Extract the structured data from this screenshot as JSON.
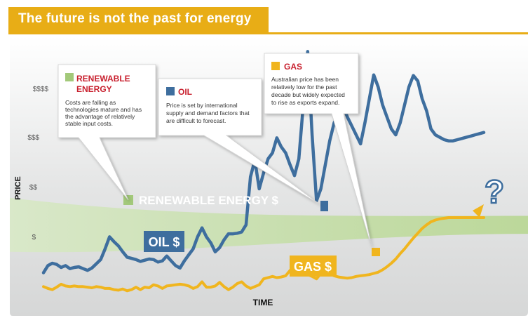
{
  "title": "The future is not the past for energy",
  "chart_data": {
    "type": "line",
    "title": "The future is not the past for energy",
    "xlabel": "TIME",
    "ylabel": "PRICE",
    "y_ticks": [
      "$",
      "$$",
      "$$$",
      "$$$$"
    ],
    "x": [
      0,
      1,
      2,
      3,
      4,
      5,
      6,
      7,
      8,
      9,
      10,
      11,
      12,
      13,
      14,
      15,
      16,
      17,
      18,
      19,
      20,
      21,
      22,
      23,
      24,
      25,
      26,
      27,
      28,
      29,
      30,
      31,
      32,
      33,
      34,
      35,
      36,
      37,
      38,
      39,
      40,
      41,
      42,
      43,
      44,
      45,
      46,
      47,
      48,
      49,
      50,
      51,
      52,
      53,
      54,
      55,
      56,
      57,
      58,
      59,
      60,
      61,
      62,
      63,
      64,
      65,
      66,
      67,
      68,
      69,
      70,
      71,
      72,
      73,
      74,
      75,
      76,
      77,
      78,
      79,
      80,
      81,
      82,
      83,
      84,
      85,
      86,
      87,
      88,
      89,
      90,
      91,
      92,
      93,
      94,
      95,
      96,
      97,
      98,
      99,
      100
    ],
    "ylim": [
      0.45,
      4.5
    ],
    "series": [
      {
        "name": "OIL $",
        "color": "#3e6e9e",
        "values": [
          0.7,
          0.82,
          0.86,
          0.84,
          0.79,
          0.82,
          0.77,
          0.79,
          0.8,
          0.77,
          0.74,
          0.78,
          0.85,
          0.92,
          1.1,
          1.3,
          1.22,
          1.15,
          1.05,
          0.96,
          0.94,
          0.92,
          0.89,
          0.91,
          0.93,
          0.92,
          0.88,
          0.9,
          0.98,
          0.9,
          0.82,
          0.78,
          0.9,
          1.0,
          1.1,
          1.3,
          1.45,
          1.3,
          1.2,
          1.05,
          1.12,
          1.25,
          1.35,
          1.35,
          1.36,
          1.38,
          1.5,
          2.3,
          2.58,
          2.1,
          2.37,
          2.6,
          2.7,
          2.95,
          2.8,
          2.7,
          2.5,
          2.32,
          2.6,
          3.5,
          4.39,
          3.0,
          1.9,
          2.1,
          2.5,
          2.9,
          3.2,
          3.4,
          3.5,
          3.3,
          3.15,
          3.0,
          2.85,
          3.2,
          3.6,
          4.0,
          3.8,
          3.5,
          3.3,
          3.1,
          3.0,
          3.2,
          3.5,
          3.8,
          3.99,
          3.9,
          3.6,
          3.4,
          3.1,
          3.0,
          2.96,
          2.92,
          2.9,
          2.9,
          2.92,
          2.94,
          2.96,
          2.98,
          3.0,
          3.02,
          3.04
        ]
      },
      {
        "name": "GAS $",
        "color": "#f0b51e",
        "values": [
          0.47,
          0.44,
          0.42,
          0.46,
          0.51,
          0.48,
          0.47,
          0.48,
          0.47,
          0.47,
          0.46,
          0.45,
          0.47,
          0.46,
          0.44,
          0.44,
          0.42,
          0.41,
          0.43,
          0.4,
          0.42,
          0.46,
          0.42,
          0.46,
          0.45,
          0.5,
          0.48,
          0.44,
          0.48,
          0.49,
          0.5,
          0.51,
          0.5,
          0.48,
          0.44,
          0.47,
          0.55,
          0.46,
          0.46,
          0.48,
          0.54,
          0.47,
          0.42,
          0.46,
          0.52,
          0.55,
          0.48,
          0.44,
          0.47,
          0.5,
          0.6,
          0.62,
          0.64,
          0.62,
          0.63,
          0.65,
          0.74,
          0.79,
          0.76,
          0.72,
          0.67,
          0.64,
          0.6,
          0.69,
          0.72,
          0.68,
          0.65,
          0.63,
          0.62,
          0.61,
          0.62,
          0.64,
          0.65,
          0.66,
          0.67,
          0.69,
          0.71,
          0.75,
          0.8,
          0.86,
          0.93,
          1.02,
          1.1,
          1.19,
          1.28,
          1.36,
          1.44,
          1.5,
          1.55,
          1.58,
          1.6,
          1.61,
          1.62,
          1.62,
          1.62,
          1.62,
          1.62,
          1.62,
          1.62,
          1.62,
          1.62
        ]
      }
    ],
    "band": {
      "name": "RENEWABLE ENERGY $",
      "color": "#bcd89a",
      "upper_start": 1.95,
      "upper_end": 1.65,
      "lower_start": 1.05,
      "lower_end": 1.35
    }
  },
  "series_labels": {
    "oil": "OIL $",
    "gas": "GAS $",
    "renewable": "RENEWABLE ENERGY $",
    "question": "?"
  },
  "callouts": {
    "renewable": {
      "title_line1": "RENEWABLE",
      "title_line2": "ENERGY",
      "body": [
        "Costs are falling as",
        "technologies mature and has",
        "the advantage of relatively",
        "stable input costs."
      ],
      "color": "#a3c97a",
      "title_color": "#c8202e"
    },
    "oil": {
      "title": "OIL",
      "body": [
        "Price is set by international",
        "supply and demand factors that",
        "are difficult to forecast."
      ],
      "color": "#3e6e9e",
      "title_color": "#c8202e"
    },
    "gas": {
      "title": "GAS",
      "body": [
        "Australian price has been",
        "relatively low for the past",
        "decade but widely expected",
        "to rise as exports expand."
      ],
      "color": "#f0b51e",
      "title_color": "#c8202e"
    }
  },
  "colors": {
    "accent": "#e8ad16",
    "oil": "#3e6e9e",
    "gas": "#f0b51e",
    "renewable": "#a3c97a",
    "label_red": "#c8202e"
  }
}
